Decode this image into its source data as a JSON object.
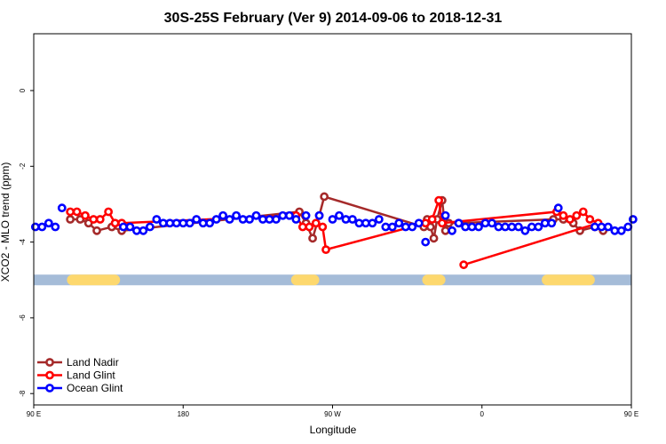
{
  "chart_data": {
    "type": "scatter",
    "title": "30S-25S February (Ver 9)   2014-09-06 to 2018-12-31",
    "xlabel": "Longitude",
    "ylabel": "XCO2 - MLO trend (ppm)",
    "xlim": [
      90,
      450
    ],
    "ylim": [
      -8.3,
      1.5
    ],
    "x_ticks": [
      {
        "value": 90,
        "label": "90 E"
      },
      {
        "value": 180,
        "label": "180"
      },
      {
        "value": 270,
        "label": "90 W"
      },
      {
        "value": 360,
        "label": "0"
      },
      {
        "value": 450,
        "label": "90 E"
      },
      {
        "value": 540,
        "label": "180"
      }
    ],
    "y_ticks": [
      {
        "value": 0,
        "label": "0"
      },
      {
        "value": -2,
        "label": "-2"
      },
      {
        "value": -4,
        "label": "-4"
      },
      {
        "value": -6,
        "label": "-6"
      },
      {
        "value": -8,
        "label": "-8"
      }
    ],
    "legend_position": "bottom-left",
    "band": {
      "y": -5.0,
      "color": "#a5bcd8",
      "land_color": "#fdd86e",
      "land_ranges": [
        [
          110,
          142
        ],
        [
          245,
          262
        ],
        [
          324,
          338
        ],
        [
          396,
          428
        ]
      ]
    },
    "series": [
      {
        "name": "Land Nadir",
        "color": "#a52a2a",
        "connect": true,
        "points": [
          [
            112,
            -3.4
          ],
          [
            118,
            -3.4
          ],
          [
            123,
            -3.5
          ],
          [
            128,
            -3.7
          ],
          [
            137,
            -3.6
          ],
          [
            143,
            -3.7
          ],
          [
            250,
            -3.2
          ],
          [
            254,
            -3.5
          ],
          [
            258,
            -3.9
          ],
          [
            262,
            -3.3
          ],
          [
            265,
            -2.8
          ],
          [
            325,
            -3.6
          ],
          [
            327,
            -3.4
          ],
          [
            329,
            -3.6
          ],
          [
            331,
            -3.9
          ],
          [
            333,
            -3.4
          ],
          [
            336,
            -2.9
          ],
          [
            338,
            -3.7
          ],
          [
            340,
            -3.5
          ],
          [
            346,
            -3.5
          ],
          [
            403,
            -3.4
          ],
          [
            409,
            -3.4
          ],
          [
            415,
            -3.5
          ],
          [
            419,
            -3.7
          ],
          [
            428,
            -3.6
          ],
          [
            433,
            -3.7
          ]
        ]
      },
      {
        "name": "Land Glint",
        "color": "#ff0000",
        "connect": true,
        "points": [
          [
            112,
            -3.2
          ],
          [
            116,
            -3.2
          ],
          [
            121,
            -3.3
          ],
          [
            126,
            -3.4
          ],
          [
            130,
            -3.4
          ],
          [
            135,
            -3.2
          ],
          [
            139,
            -3.5
          ],
          [
            143,
            -3.5
          ],
          [
            248,
            -3.3
          ],
          [
            252,
            -3.6
          ],
          [
            256,
            -3.6
          ],
          [
            260,
            -3.5
          ],
          [
            264,
            -3.6
          ],
          [
            266,
            -4.2
          ],
          [
            326,
            -3.5
          ],
          [
            330,
            -3.4
          ],
          [
            334,
            -2.9
          ],
          [
            336,
            -3.5
          ],
          [
            405,
            -3.2
          ],
          [
            409,
            -3.3
          ],
          [
            413,
            -3.4
          ],
          [
            417,
            -3.3
          ],
          [
            421,
            -3.2
          ],
          [
            425,
            -3.4
          ],
          [
            430,
            -3.5
          ],
          [
            349,
            -4.6
          ]
        ]
      },
      {
        "name": "Ocean Glint",
        "color": "#0000ff",
        "connect": false,
        "points": [
          [
            91,
            -3.6
          ],
          [
            95,
            -3.6
          ],
          [
            99,
            -3.5
          ],
          [
            103,
            -3.6
          ],
          [
            107,
            -3.1
          ],
          [
            144,
            -3.6
          ],
          [
            148,
            -3.6
          ],
          [
            152,
            -3.7
          ],
          [
            156,
            -3.7
          ],
          [
            160,
            -3.6
          ],
          [
            164,
            -3.4
          ],
          [
            168,
            -3.5
          ],
          [
            172,
            -3.5
          ],
          [
            176,
            -3.5
          ],
          [
            180,
            -3.5
          ],
          [
            184,
            -3.5
          ],
          [
            188,
            -3.4
          ],
          [
            192,
            -3.5
          ],
          [
            196,
            -3.5
          ],
          [
            200,
            -3.4
          ],
          [
            204,
            -3.3
          ],
          [
            208,
            -3.4
          ],
          [
            212,
            -3.3
          ],
          [
            216,
            -3.4
          ],
          [
            220,
            -3.4
          ],
          [
            224,
            -3.3
          ],
          [
            228,
            -3.4
          ],
          [
            232,
            -3.4
          ],
          [
            236,
            -3.4
          ],
          [
            240,
            -3.3
          ],
          [
            244,
            -3.3
          ],
          [
            248,
            -3.4
          ],
          [
            254,
            -3.3
          ],
          [
            262,
            -3.3
          ],
          [
            270,
            -3.4
          ],
          [
            274,
            -3.3
          ],
          [
            278,
            -3.4
          ],
          [
            282,
            -3.4
          ],
          [
            286,
            -3.5
          ],
          [
            290,
            -3.5
          ],
          [
            294,
            -3.5
          ],
          [
            298,
            -3.4
          ],
          [
            302,
            -3.6
          ],
          [
            306,
            -3.6
          ],
          [
            310,
            -3.5
          ],
          [
            314,
            -3.6
          ],
          [
            318,
            -3.6
          ],
          [
            322,
            -3.5
          ],
          [
            326,
            -4.0
          ],
          [
            338,
            -3.3
          ],
          [
            342,
            -3.7
          ],
          [
            346,
            -3.5
          ],
          [
            350,
            -3.6
          ],
          [
            354,
            -3.6
          ],
          [
            358,
            -3.6
          ],
          [
            362,
            -3.5
          ],
          [
            366,
            -3.5
          ],
          [
            370,
            -3.6
          ],
          [
            374,
            -3.6
          ],
          [
            378,
            -3.6
          ],
          [
            382,
            -3.6
          ],
          [
            386,
            -3.7
          ],
          [
            390,
            -3.6
          ],
          [
            394,
            -3.6
          ],
          [
            398,
            -3.5
          ],
          [
            402,
            -3.5
          ],
          [
            406,
            -3.1
          ],
          [
            428,
            -3.6
          ],
          [
            432,
            -3.6
          ],
          [
            436,
            -3.6
          ],
          [
            440,
            -3.7
          ],
          [
            444,
            -3.7
          ],
          [
            448,
            -3.6
          ],
          [
            451,
            -3.4
          ]
        ]
      }
    ]
  }
}
